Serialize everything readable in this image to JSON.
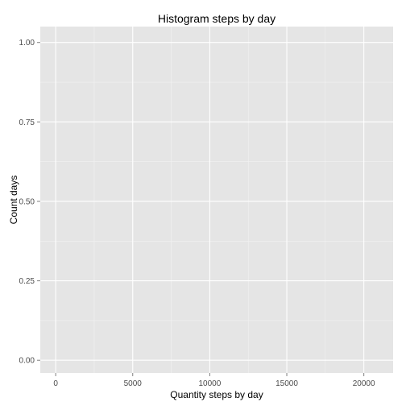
{
  "chart_data": {
    "type": "bar",
    "title": "Histogram steps by day",
    "xlabel": "Quantity steps by day",
    "ylabel": "Count days",
    "xlim": [
      -1000,
      21900
    ],
    "ylim": [
      -0.04,
      1.05
    ],
    "x_ticks": [
      0,
      5000,
      10000,
      15000,
      20000
    ],
    "x_tick_labels": [
      "0",
      "5000",
      "10000",
      "15000",
      "20000"
    ],
    "y_ticks": [
      0,
      0.25,
      0.5,
      0.75,
      1.0
    ],
    "y_tick_labels": [
      "0.00",
      "0.25",
      "0.50",
      "0.75",
      "1.00"
    ],
    "bars": [],
    "grid": true,
    "panel_background": "#e5e5e5",
    "grid_major_color": "#ffffff",
    "grid_minor_color": "#f2f2f2",
    "tick_label_color": "#4d4d4d"
  }
}
